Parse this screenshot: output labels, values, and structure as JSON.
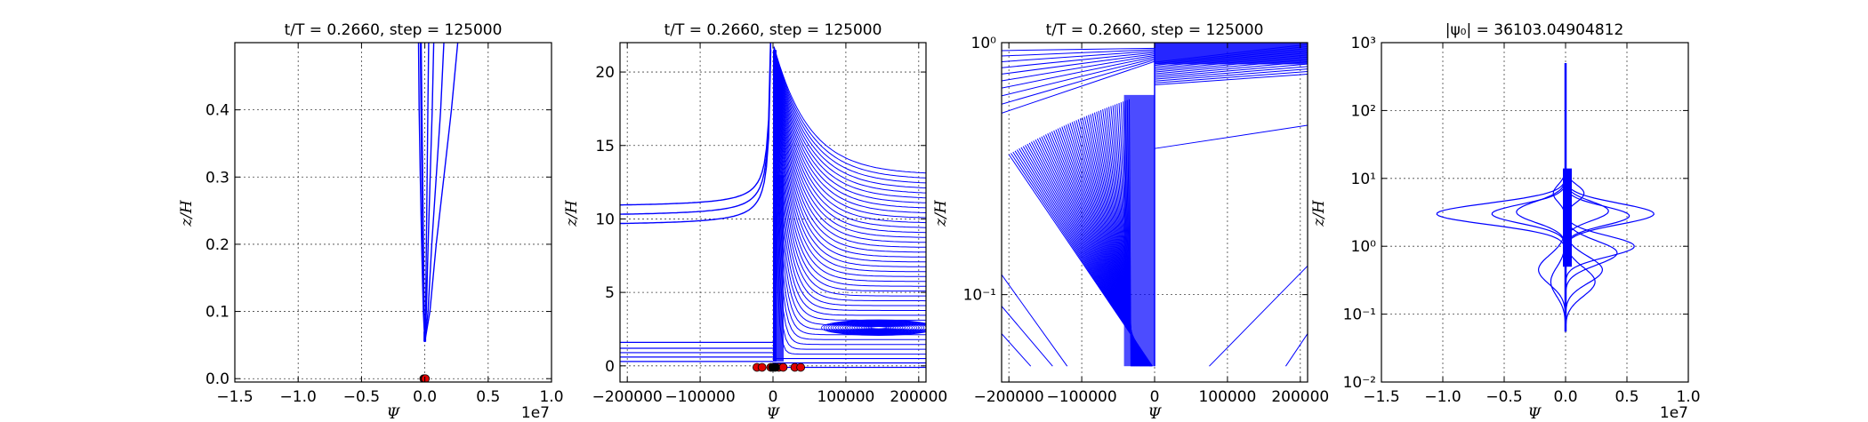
{
  "chart_data": [
    {
      "type": "line",
      "title": "t/T = 0.2660, step = 125000",
      "xlabel": "Ψ",
      "ylabel": "z/H",
      "x_offset_label": "1e7",
      "xlim": [
        -15000000,
        10000000
      ],
      "ylim": [
        -0.005,
        0.5
      ],
      "xticks": [
        -15000000,
        -10000000,
        -5000000,
        0,
        5000000,
        10000000
      ],
      "xtick_labels": [
        "−1.5",
        "−1.0",
        "−0.5",
        "0.0",
        "0.5",
        "1.0"
      ],
      "yticks": [
        0,
        0.1,
        0.2,
        0.3,
        0.4
      ],
      "ytick_labels": [
        "0.0",
        "0.1",
        "0.2",
        "0.3",
        "0.4"
      ],
      "grid": true,
      "line_color": "#0000ff",
      "series": [
        {
          "x": [
            0,
            400000,
            900000,
            1500000,
            2100000,
            2600000
          ],
          "y": [
            0.055,
            0.1,
            0.2,
            0.3,
            0.4,
            0.5
          ]
        },
        {
          "x": [
            0,
            250000,
            550000,
            900000,
            1250000,
            1500000
          ],
          "y": [
            0.055,
            0.1,
            0.2,
            0.3,
            0.4,
            0.5
          ]
        },
        {
          "x": [
            0,
            120000,
            260000,
            420000,
            580000,
            700000
          ],
          "y": [
            0.055,
            0.1,
            0.2,
            0.3,
            0.4,
            0.5
          ]
        },
        {
          "x": [
            0,
            60000,
            120000,
            180000,
            240000,
            300000
          ],
          "y": [
            0.055,
            0.1,
            0.2,
            0.3,
            0.4,
            0.5
          ]
        },
        {
          "x": [
            0,
            -50000,
            -110000,
            -170000,
            -230000,
            -290000
          ],
          "y": [
            0.055,
            0.1,
            0.2,
            0.3,
            0.4,
            0.5
          ]
        },
        {
          "x": [
            0,
            -120000,
            -250000,
            -360000,
            -450000,
            -500000
          ],
          "y": [
            0.055,
            0.1,
            0.2,
            0.3,
            0.4,
            0.5
          ]
        },
        {
          "x": [
            0,
            -80000,
            -160000,
            -230000,
            -300000,
            -350000
          ],
          "y": [
            0.055,
            0.1,
            0.2,
            0.3,
            0.4,
            0.5
          ]
        }
      ],
      "markers": {
        "color": "#e00000",
        "x": [
          -80000,
          0,
          40000
        ],
        "y": [
          0,
          0,
          0
        ]
      }
    },
    {
      "type": "line",
      "title": "t/T = 0.2660, step = 125000",
      "xlabel": "Ψ",
      "ylabel": "z/H",
      "xlim": [
        -210000,
        210000
      ],
      "ylim": [
        -1.1,
        22
      ],
      "xticks": [
        -200000,
        -100000,
        0,
        100000,
        200000
      ],
      "xtick_labels": [
        "−200000",
        "−100000",
        "0",
        "100000",
        "200000"
      ],
      "yticks": [
        0,
        5,
        10,
        15,
        20
      ],
      "ytick_labels": [
        "0",
        "5",
        "10",
        "15",
        "20"
      ],
      "grid": true,
      "line_color": "#0000ff",
      "markers": {
        "color": "#e00000",
        "x": [
          -22000,
          -15000,
          -3000,
          0,
          3000,
          8000,
          14000,
          30000,
          38000
        ],
        "y": [
          -0.1,
          -0.1,
          -0.1,
          -0.1,
          -0.1,
          -0.1,
          -0.1,
          -0.1,
          -0.1
        ]
      },
      "dark_markers": {
        "color": "#000000",
        "x": [
          -1000,
          1500,
          4000
        ],
        "y": [
          -0.1,
          -0.1,
          -0.1
        ]
      }
    },
    {
      "type": "line",
      "title": "t/T = 0.2660, step = 125000",
      "xlabel": "Ψ",
      "ylabel": "z/H",
      "yscale": "log",
      "xlim": [
        -210000,
        210000
      ],
      "ylim": [
        0.045,
        1.0
      ],
      "xticks": [
        -200000,
        -100000,
        0,
        100000,
        200000
      ],
      "xtick_labels": [
        "−200000",
        "−100000",
        "0",
        "100000",
        "200000"
      ],
      "yticks": [
        0.1,
        1.0
      ],
      "ytick_labels": [
        "10⁻¹",
        "10⁰"
      ],
      "grid": true,
      "line_color": "#0000ff"
    },
    {
      "type": "line",
      "title": "|ψ₀| = 36103.04904812",
      "xlabel": "Ψ",
      "ylabel": "z/H",
      "x_offset_label": "1e7",
      "yscale": "log",
      "xlim": [
        -15000000,
        10000000
      ],
      "ylim": [
        0.01,
        1000
      ],
      "xticks": [
        -15000000,
        -10000000,
        -5000000,
        0,
        5000000,
        10000000
      ],
      "xtick_labels": [
        "−1.5",
        "−1.0",
        "−0.5",
        "0.0",
        "0.5",
        "1.0"
      ],
      "yticks": [
        0.01,
        0.1,
        1,
        10,
        100,
        1000
      ],
      "ytick_labels": [
        "10⁻²",
        "10⁻¹",
        "10⁰",
        "10¹",
        "10²",
        "10³"
      ],
      "grid": true,
      "line_color": "#0000ff",
      "bumps": [
        {
          "amp": -10500000,
          "center": 3.0,
          "width": 0.22
        },
        {
          "amp": -6000000,
          "center": 3.0,
          "width": 0.2
        },
        {
          "amp": 7200000,
          "center": 3.0,
          "width": 0.22
        },
        {
          "amp": 5200000,
          "center": 2.8,
          "width": 0.2
        },
        {
          "amp": -4000000,
          "center": 3.2,
          "width": 0.22
        },
        {
          "amp": 3500000,
          "center": 3.3,
          "width": 0.2
        },
        {
          "amp": 5600000,
          "center": 1.0,
          "width": 0.22
        },
        {
          "amp": 4200000,
          "center": 0.8,
          "width": 0.25
        },
        {
          "amp": 3000000,
          "center": 0.45,
          "width": 0.28
        },
        {
          "amp": -2200000,
          "center": 0.45,
          "width": 0.3
        },
        {
          "amp": -1200000,
          "center": 0.3,
          "width": 0.3
        },
        {
          "amp": 2400000,
          "center": 0.3,
          "width": 0.3
        },
        {
          "amp": 1500000,
          "center": 6.0,
          "width": 0.18
        },
        {
          "amp": -1000000,
          "center": 6.0,
          "width": 0.18
        }
      ]
    }
  ]
}
